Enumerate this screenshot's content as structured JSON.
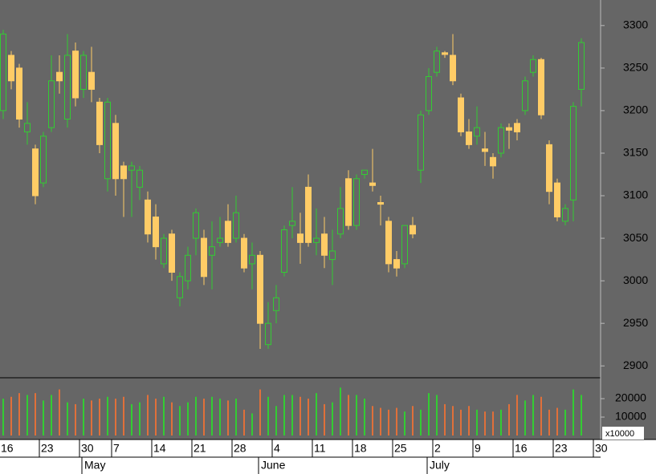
{
  "chart_data": {
    "type": "candlestick",
    "up_color": "#33cc33",
    "down_color": "#ffcc66",
    "background": "#666666",
    "xlim": [
      -0.4,
      74.4
    ],
    "ylim": [
      2887,
      3330
    ],
    "yticks": [
      2900,
      2950,
      3000,
      3050,
      3100,
      3150,
      3200,
      3250,
      3300
    ],
    "volume_ylim": [
      0,
      30900
    ],
    "volume_yticks": [
      10000,
      20000
    ],
    "volume_unit": "x10000",
    "xticks": [
      {
        "value": 0,
        "label": "16"
      },
      {
        "value": 5,
        "label": "23"
      },
      {
        "value": 10,
        "label": "30"
      },
      {
        "value": 14,
        "label": "7"
      },
      {
        "value": 19,
        "label": "14"
      },
      {
        "value": 24,
        "label": "21"
      },
      {
        "value": 29,
        "label": "28"
      },
      {
        "value": 34,
        "label": "4"
      },
      {
        "value": 39,
        "label": "11"
      },
      {
        "value": 44,
        "label": "18"
      },
      {
        "value": 49,
        "label": "25"
      },
      {
        "value": 54,
        "label": "2"
      },
      {
        "value": 59,
        "label": "9"
      },
      {
        "value": 64,
        "label": "16"
      },
      {
        "value": 69,
        "label": "23"
      },
      {
        "value": 74,
        "label": "30"
      }
    ],
    "month_ticks": [
      {
        "value": 9.8,
        "label": "May"
      },
      {
        "value": 31.8,
        "label": "June"
      },
      {
        "value": 52.8,
        "label": "July"
      }
    ],
    "open": [
      3200,
      3265,
      3250,
      3175,
      3155,
      3115,
      3180,
      3245,
      3190,
      3270,
      3225,
      3245,
      3210,
      3120,
      3185,
      3135,
      3130,
      3110,
      3095,
      3075,
      3020,
      3055,
      2980,
      3000,
      3050,
      3050,
      3030,
      3045,
      3070,
      3050,
      3050,
      3020,
      3030,
      2925,
      2965,
      3010,
      3065,
      3055,
      3110,
      3045,
      3055,
      3025,
      3055,
      3120,
      3065,
      3125,
      3115,
      3092,
      3070,
      3025,
      3020,
      3065,
      3130,
      3200,
      3245,
      3268,
      3265,
      3215,
      3175,
      3170,
      3155,
      3145,
      3150,
      3180,
      3185,
      3200,
      3245,
      3260,
      3160,
      3115,
      3070,
      3095,
      3225
    ],
    "high": [
      3295,
      3270,
      3255,
      3210,
      3160,
      3175,
      3265,
      3265,
      3290,
      3280,
      3270,
      3275,
      3215,
      3215,
      3195,
      3140,
      3140,
      3135,
      3105,
      3090,
      3055,
      3060,
      3010,
      3040,
      3085,
      3060,
      3070,
      3075,
      3090,
      3100,
      3055,
      3045,
      3035,
      2975,
      2995,
      3065,
      3110,
      3080,
      3125,
      3085,
      3075,
      3060,
      3110,
      3130,
      3125,
      3130,
      3155,
      3100,
      3075,
      3035,
      3065,
      3075,
      3200,
      3250,
      3275,
      3270,
      3290,
      3220,
      3190,
      3205,
      3175,
      3150,
      3185,
      3185,
      3190,
      3240,
      3265,
      3262,
      3165,
      3120,
      3090,
      3210,
      3285
    ],
    "low": [
      3190,
      3225,
      3180,
      3160,
      3090,
      3110,
      3175,
      3220,
      3180,
      3205,
      3215,
      3210,
      3150,
      3105,
      3100,
      3075,
      3075,
      3095,
      3045,
      3025,
      3015,
      3000,
      2970,
      2990,
      3030,
      2995,
      2990,
      3040,
      3040,
      3045,
      3010,
      2990,
      2920,
      2920,
      2950,
      3005,
      3050,
      3020,
      3040,
      3030,
      3015,
      2995,
      3050,
      3060,
      3060,
      3120,
      3105,
      3065,
      3010,
      3005,
      3015,
      3050,
      3115,
      3195,
      3240,
      3262,
      3230,
      3170,
      3155,
      3160,
      3135,
      3120,
      3145,
      3155,
      3165,
      3195,
      3240,
      3190,
      3090,
      3070,
      3065,
      3070,
      3205
    ],
    "close": [
      3290,
      3235,
      3190,
      3185,
      3100,
      3170,
      3235,
      3235,
      3265,
      3215,
      3265,
      3225,
      3160,
      3210,
      3120,
      3120,
      3135,
      3130,
      3055,
      3040,
      3050,
      3010,
      3005,
      3030,
      3080,
      3005,
      3040,
      3050,
      3045,
      3080,
      3015,
      3030,
      2950,
      2950,
      2980,
      3060,
      3070,
      3045,
      3045,
      3050,
      3030,
      3035,
      3085,
      3065,
      3120,
      3130,
      3112,
      3090,
      3020,
      3015,
      3065,
      3055,
      3195,
      3240,
      3270,
      3266,
      3235,
      3175,
      3160,
      3180,
      3152,
      3135,
      3180,
      3177,
      3175,
      3235,
      3260,
      3195,
      3105,
      3075,
      3085,
      3205,
      3280
    ],
    "volume": [
      20000,
      21000,
      23000,
      22000,
      23000,
      19000,
      22000,
      25000,
      18000,
      17000,
      20000,
      19000,
      20000,
      21000,
      20000,
      21000,
      17000,
      18000,
      22000,
      20000,
      21000,
      18000,
      16000,
      18000,
      21000,
      20000,
      21000,
      20000,
      19000,
      20000,
      14000,
      12000,
      25000,
      21000,
      16000,
      22000,
      22000,
      21000,
      20000,
      23000,
      17000,
      18000,
      26000,
      22000,
      22000,
      20000,
      16000,
      15000,
      14000,
      15000,
      13000,
      16000,
      14000,
      23000,
      22000,
      17000,
      16000,
      14000,
      16000,
      14000,
      13000,
      13000,
      14000,
      17000,
      22000,
      19000,
      22000,
      21000,
      14000,
      15000,
      14000,
      25000,
      22000
    ]
  }
}
